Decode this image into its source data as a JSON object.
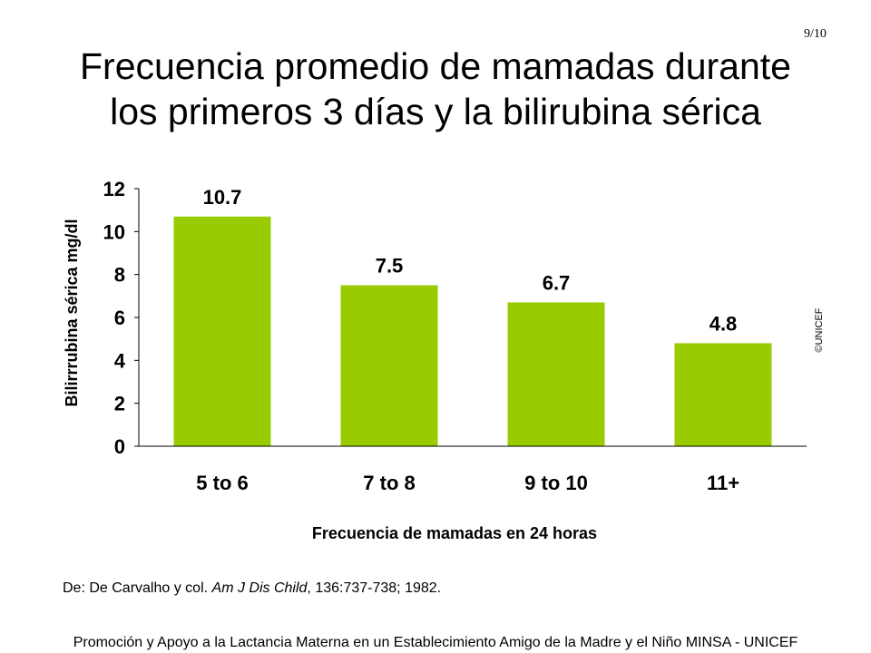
{
  "page": {
    "number": "9/10",
    "title_line1": "Frecuencia promedio de mamadas  durante",
    "title_line2": "los primeros 3 días y la bilirubina sérica",
    "copyright": "©UNICEF",
    "citation_prefix": "De: De Carvalho y col. ",
    "citation_journal": "Am J Dis Child",
    "citation_suffix": ", 136:737-738; 1982.",
    "footer": "Promoción y Apoyo a la Lactancia Materna en un Establecimiento Amigo de la Madre y el Niño  MINSA - UNICEF"
  },
  "colors": {
    "bar": "#99cc00",
    "axis": "#000000"
  },
  "chart_data": {
    "type": "bar",
    "title": "",
    "xlabel": "Frecuencia de mamadas en 24 horas",
    "ylabel": "Bilirrrubina sérica mg/dl",
    "categories": [
      "5 to 6",
      "7 to 8",
      "9 to 10",
      "11+"
    ],
    "values": [
      10.7,
      7.5,
      6.7,
      4.8
    ],
    "data_labels": [
      "10.7",
      "7.5",
      "6.7",
      "4.8"
    ],
    "y_ticks": [
      0,
      2,
      4,
      6,
      8,
      10,
      12
    ],
    "ylim": [
      0,
      12
    ],
    "grid": false,
    "legend": "none"
  }
}
